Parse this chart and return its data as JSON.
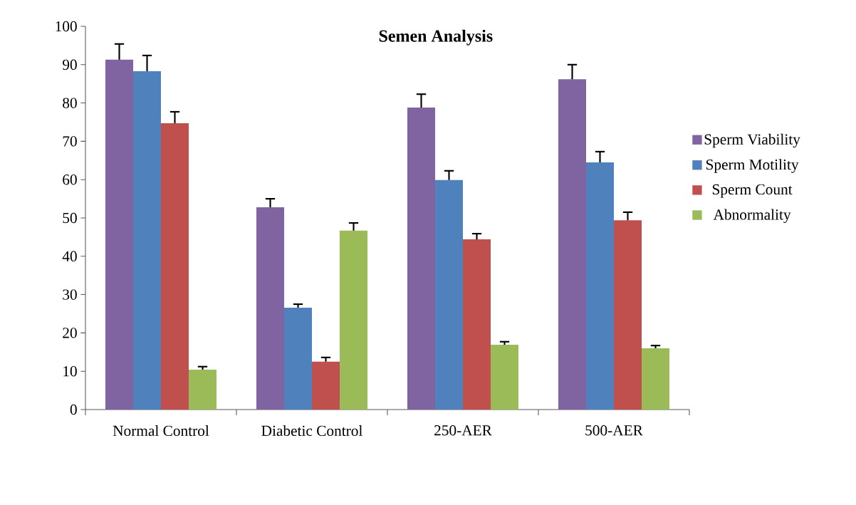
{
  "chart_data": {
    "type": "bar",
    "title": "Semen Analysis",
    "categories": [
      "Normal Control",
      "Diabetic Control",
      "250-AER",
      "500-AER"
    ],
    "series": [
      {
        "name": "Sperm Viability",
        "color": "#8064a2",
        "values": [
          91.3,
          52.8,
          78.8,
          86.2
        ],
        "errors": [
          [
            91.3,
            95.4
          ],
          [
            52.8,
            55.0
          ],
          [
            78.8,
            82.3
          ],
          [
            86.2,
            90.0
          ]
        ]
      },
      {
        "name": "Sperm Motility",
        "color": "#4f81bd",
        "values": [
          88.3,
          26.6,
          59.9,
          64.5
        ],
        "errors": [
          [
            88.3,
            92.4
          ],
          [
            26.6,
            27.5
          ],
          [
            59.9,
            62.3
          ],
          [
            64.5,
            67.3
          ]
        ]
      },
      {
        "name": "Sperm Count",
        "color": "#c0504d",
        "values": [
          74.7,
          12.5,
          44.4,
          49.4
        ],
        "errors": [
          [
            74.7,
            77.7
          ],
          [
            12.5,
            13.6
          ],
          [
            44.4,
            45.9
          ],
          [
            49.4,
            51.5
          ]
        ]
      },
      {
        "name": "Abnormality",
        "color": "#9bbb59",
        "values": [
          10.4,
          46.7,
          16.9,
          16.0
        ],
        "errors": [
          [
            10.4,
            11.2
          ],
          [
            46.7,
            48.7
          ],
          [
            16.9,
            17.7
          ],
          [
            16.0,
            16.7
          ]
        ]
      }
    ],
    "ylim": [
      0,
      100
    ],
    "yticks": [
      0,
      10,
      20,
      30,
      40,
      50,
      60,
      70,
      80,
      90,
      100
    ],
    "grid": false,
    "legend": "right"
  }
}
